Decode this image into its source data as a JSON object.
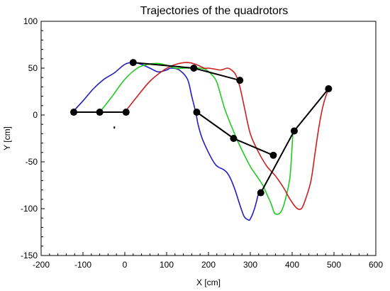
{
  "chart_data": {
    "type": "line",
    "title": "Trajectories of the quadrotors",
    "xlabel": "X [cm]",
    "ylabel": "Y [cm]",
    "xlim": [
      -200,
      600
    ],
    "ylim": [
      -150,
      100
    ],
    "xticks": [
      -200,
      -100,
      0,
      100,
      200,
      300,
      400,
      500,
      600
    ],
    "yticks": [
      -150,
      -100,
      -50,
      0,
      50,
      100
    ],
    "grid": false,
    "series": [
      {
        "color": "#1f1fbf",
        "x": [
          -125,
          -100,
          -75,
          -50,
          -25,
          0,
          20,
          40,
          60,
          80,
          100,
          110,
          130,
          150,
          160,
          170,
          175,
          185,
          200,
          215,
          225,
          235,
          245,
          255,
          265,
          275,
          285,
          295,
          300,
          310,
          320
        ],
        "y": [
          3,
          15,
          28,
          38,
          45,
          54,
          56,
          54,
          50,
          46,
          48,
          50,
          48,
          38,
          20,
          2,
          -10,
          -25,
          -40,
          -52,
          -56,
          -58,
          -62,
          -70,
          -82,
          -96,
          -108,
          -112,
          -111,
          -100,
          -83
        ]
      },
      {
        "color": "#1fcc1f",
        "x": [
          -60,
          -30,
          0,
          30,
          55,
          80,
          100,
          120,
          140,
          160,
          180,
          195,
          210,
          220,
          230,
          240,
          255,
          270,
          285,
          300,
          315,
          330,
          340,
          350,
          357,
          365,
          375,
          385,
          395,
          402
        ],
        "y": [
          3,
          20,
          38,
          50,
          54,
          55,
          53,
          50,
          50,
          50,
          50,
          48,
          42,
          35,
          20,
          5,
          -12,
          -28,
          -42,
          -55,
          -65,
          -75,
          -85,
          -95,
          -104,
          -106,
          -102,
          -88,
          -65,
          -17
        ]
      },
      {
        "color": "#cc1f1f",
        "x": [
          0,
          30,
          60,
          90,
          110,
          130,
          150,
          170,
          190,
          200,
          215,
          230,
          245,
          255,
          265,
          275,
          285,
          300,
          320,
          340,
          360,
          380,
          395,
          410,
          422,
          432,
          445,
          455,
          465,
          475,
          487
        ],
        "y": [
          3,
          20,
          36,
          47,
          52,
          55,
          56,
          54,
          50,
          50,
          49,
          48,
          50,
          48,
          43,
          30,
          10,
          -20,
          -40,
          -55,
          -65,
          -78,
          -90,
          -99,
          -100,
          -90,
          -70,
          -40,
          -10,
          12,
          28
        ]
      }
    ],
    "links": [
      {
        "color": "#000000",
        "x": [
          -122,
          -60,
          3
        ],
        "y": [
          3,
          3,
          3
        ]
      },
      {
        "color": "#000000",
        "x": [
          20,
          165,
          275
        ],
        "y": [
          56,
          50,
          37
        ]
      },
      {
        "color": "#000000",
        "x": [
          172,
          260,
          355
        ],
        "y": [
          3,
          -25,
          -43
        ]
      },
      {
        "color": "#000000",
        "x": [
          325,
          405,
          487
        ],
        "y": [
          -83,
          -17,
          28
        ]
      }
    ],
    "stray_point": {
      "x": -25,
      "y": -13
    }
  }
}
